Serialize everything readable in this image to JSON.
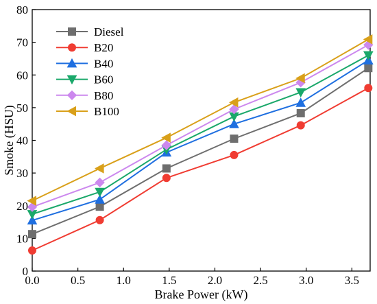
{
  "chart_data": {
    "type": "line",
    "title": "",
    "xlabel": "Brake Power (kW)",
    "ylabel": "Smoke (HSU)",
    "xlim": [
      0.0,
      3.7
    ],
    "ylim": [
      0,
      80
    ],
    "x_ticks": [
      "0.0",
      "0.5",
      "1.0",
      "1.5",
      "2.0",
      "2.5",
      "3.0",
      "3.5"
    ],
    "y_ticks": [
      "0",
      "10",
      "20",
      "30",
      "40",
      "50",
      "60",
      "70",
      "80"
    ],
    "grid": false,
    "legend_position": "top-left",
    "x": [
      0.0,
      0.74,
      1.47,
      2.21,
      2.94,
      3.68
    ],
    "series": [
      {
        "name": "Diesel",
        "marker": "square",
        "color": "#6e6e6e",
        "values": [
          11.3,
          19.7,
          31.4,
          40.5,
          48.3,
          62.1
        ]
      },
      {
        "name": "B20",
        "marker": "circle",
        "color": "#f03c32",
        "values": [
          6.3,
          15.6,
          28.5,
          35.5,
          44.6,
          56.0
        ]
      },
      {
        "name": "B40",
        "marker": "triangle-up",
        "color": "#1f6fe0",
        "values": [
          15.5,
          21.9,
          36.3,
          45.0,
          51.5,
          64.5
        ]
      },
      {
        "name": "B60",
        "marker": "triangle-down",
        "color": "#1aa86a",
        "values": [
          17.4,
          24.2,
          37.2,
          47.3,
          54.7,
          66.0
        ]
      },
      {
        "name": "B80",
        "marker": "diamond",
        "color": "#cc88ee",
        "values": [
          19.6,
          27.1,
          38.5,
          49.5,
          57.7,
          69.2
        ]
      },
      {
        "name": "B100",
        "marker": "triangle-left",
        "color": "#d9a01a",
        "values": [
          21.5,
          31.4,
          40.8,
          51.6,
          59.0,
          70.9
        ]
      }
    ]
  }
}
